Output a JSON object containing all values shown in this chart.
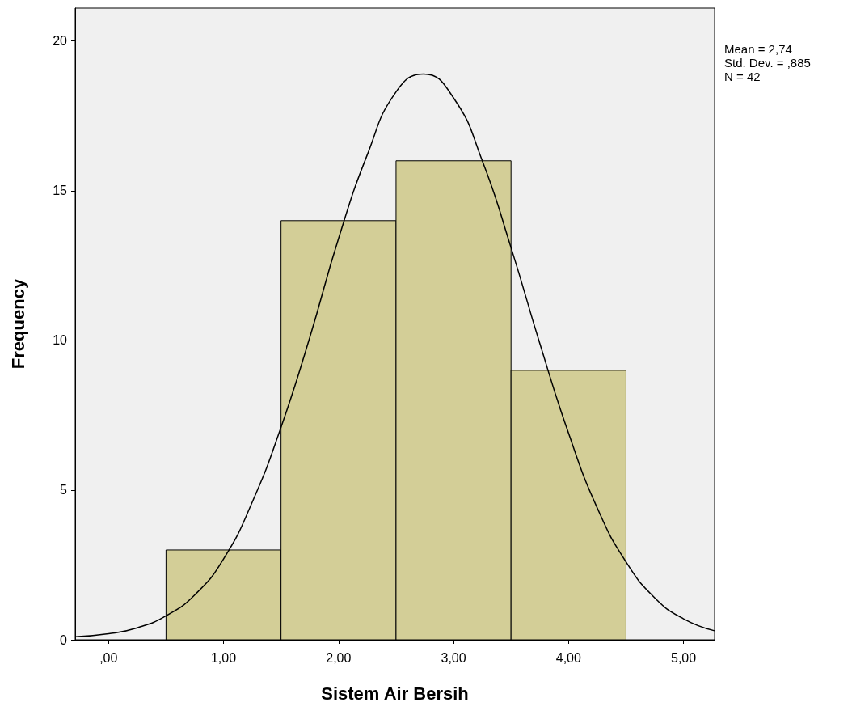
{
  "chart_data": {
    "type": "histogram",
    "xlabel": "Sistem Air Bersih",
    "ylabel": "Frequency",
    "bins": [
      0.5,
      1.5,
      2.5,
      3.5,
      4.5
    ],
    "values": [
      3,
      14,
      16,
      9
    ],
    "color": "#d3ce97",
    "series": [
      {
        "type": "line",
        "color": "#000000",
        "x": [
          -0.29,
          0,
          0.25,
          0.5,
          0.75,
          1,
          1.25,
          1.5,
          1.75,
          2,
          2.25,
          2.5,
          2.74,
          3,
          3.25,
          3.5,
          3.75,
          4,
          4.25,
          4.5,
          4.75,
          5,
          5.27
        ],
        "values": [
          0.1,
          0.2,
          0.4,
          0.8,
          1.5,
          2.7,
          4.6,
          7.1,
          10.1,
          13.4,
          16.2,
          18.3,
          18.9,
          18.1,
          16,
          13.1,
          9.9,
          6.9,
          4.4,
          2.6,
          1.4,
          0.7,
          0.3
        ]
      }
    ],
    "xlim": [
      -0.29,
      5.27
    ],
    "ylim": [
      0,
      21.1
    ],
    "xticks": [
      {
        "value": 0,
        "label": ",00"
      },
      {
        "value": 1,
        "label": "1,00"
      },
      {
        "value": 2,
        "label": "2,00"
      },
      {
        "value": 3,
        "label": "3,00"
      },
      {
        "value": 4,
        "label": "4,00"
      },
      {
        "value": 5,
        "label": "5,00"
      }
    ],
    "yticks": [
      0,
      5,
      10,
      15,
      20
    ],
    "marker": "none",
    "line_style": "solid",
    "annotations": [
      "Mean = 2,74",
      "Std. Dev. = ,885",
      "N = 42"
    ]
  }
}
